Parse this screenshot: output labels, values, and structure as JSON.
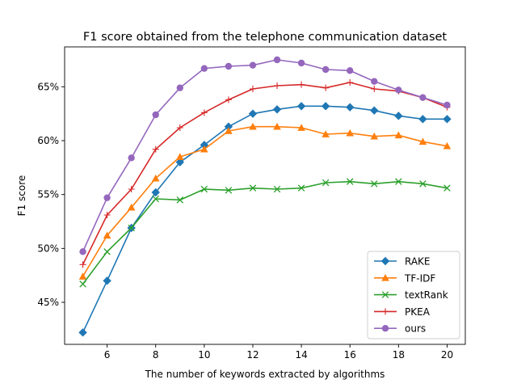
{
  "chart_data": {
    "type": "line",
    "title": "F1 score obtained from the telephone communication dataset",
    "xlabel": "The number of keywords extracted by algorithms",
    "ylabel": "F1 score",
    "x": [
      5,
      6,
      7,
      8,
      9,
      10,
      11,
      12,
      13,
      14,
      15,
      16,
      17,
      18,
      19,
      20
    ],
    "xlim": [
      4.25,
      20.75
    ],
    "ylim": [
      41.1,
      68.7
    ],
    "xticks": [
      6,
      8,
      10,
      12,
      14,
      16,
      18,
      20
    ],
    "xtick_labels": [
      "6",
      "8",
      "10",
      "12",
      "14",
      "16",
      "18",
      "20"
    ],
    "yticks": [
      45,
      50,
      55,
      60,
      65
    ],
    "ytick_labels": [
      "45%",
      "50%",
      "55%",
      "60%",
      "65%"
    ],
    "grid": false,
    "legend_position": "bottom-right",
    "series": [
      {
        "name": "RAKE",
        "color": "#1f77b4",
        "marker": "diamond",
        "values": [
          42.2,
          47.0,
          51.9,
          55.2,
          58.0,
          59.6,
          61.3,
          62.5,
          62.9,
          63.2,
          63.2,
          63.1,
          62.8,
          62.3,
          62.0,
          62.0
        ]
      },
      {
        "name": "TF-IDF",
        "color": "#ff7f0e",
        "marker": "triangle",
        "values": [
          47.4,
          51.2,
          53.8,
          56.5,
          58.5,
          59.2,
          60.9,
          61.3,
          61.3,
          61.2,
          60.6,
          60.7,
          60.4,
          60.5,
          59.9,
          59.5
        ]
      },
      {
        "name": "textRank",
        "color": "#2ca02c",
        "marker": "x",
        "values": [
          46.7,
          49.7,
          51.9,
          54.6,
          54.5,
          55.5,
          55.4,
          55.6,
          55.5,
          55.6,
          56.1,
          56.2,
          56.0,
          56.2,
          56.0,
          55.6
        ]
      },
      {
        "name": "PKEA",
        "color": "#d62728",
        "marker": "plus",
        "values": [
          48.5,
          53.1,
          55.5,
          59.2,
          61.2,
          62.6,
          63.8,
          64.8,
          65.1,
          65.2,
          64.9,
          65.4,
          64.8,
          64.6,
          64.0,
          63.1
        ]
      },
      {
        "name": "ours",
        "color": "#9467bd",
        "marker": "circle",
        "values": [
          49.7,
          54.7,
          58.4,
          62.4,
          64.9,
          66.7,
          66.9,
          67.0,
          67.5,
          67.2,
          66.6,
          66.5,
          65.5,
          64.7,
          64.0,
          63.3
        ]
      }
    ]
  }
}
